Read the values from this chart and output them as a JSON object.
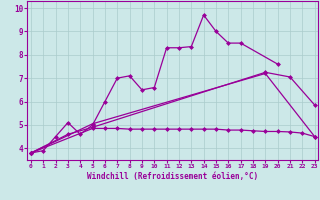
{
  "xlabel": "Windchill (Refroidissement éolien,°C)",
  "background_color": "#cce8e8",
  "grid_color": "#aacccc",
  "line_color": "#990099",
  "x_ticks": [
    0,
    1,
    2,
    3,
    4,
    5,
    6,
    7,
    8,
    9,
    10,
    11,
    12,
    13,
    14,
    15,
    16,
    17,
    18,
    19,
    20,
    21,
    22,
    23
  ],
  "y_ticks": [
    4,
    5,
    6,
    7,
    8,
    9,
    10
  ],
  "ylim": [
    3.5,
    10.3
  ],
  "xlim": [
    -0.3,
    23.3
  ],
  "y1": [
    3.8,
    3.9,
    4.5,
    5.1,
    4.6,
    5.0,
    6.0,
    7.0,
    7.1,
    6.5,
    6.6,
    8.3,
    8.3,
    8.35,
    9.7,
    9.0,
    8.5,
    8.5,
    null,
    null,
    7.6,
    null,
    null,
    null
  ],
  "y2": [
    3.8,
    null,
    null,
    4.6,
    null,
    4.9,
    null,
    null,
    null,
    null,
    null,
    null,
    null,
    null,
    null,
    null,
    null,
    null,
    null,
    7.25,
    null,
    7.05,
    null,
    5.85
  ],
  "y3": [
    3.8,
    null,
    null,
    null,
    null,
    5.05,
    null,
    null,
    null,
    null,
    null,
    null,
    null,
    null,
    null,
    null,
    null,
    null,
    null,
    7.2,
    null,
    null,
    null,
    4.5
  ],
  "y4": [
    3.8,
    null,
    null,
    null,
    null,
    4.85,
    4.85,
    4.85,
    4.82,
    4.82,
    4.82,
    4.82,
    4.82,
    4.82,
    4.82,
    4.82,
    4.78,
    4.78,
    4.75,
    4.72,
    4.72,
    4.7,
    4.65,
    4.5
  ]
}
